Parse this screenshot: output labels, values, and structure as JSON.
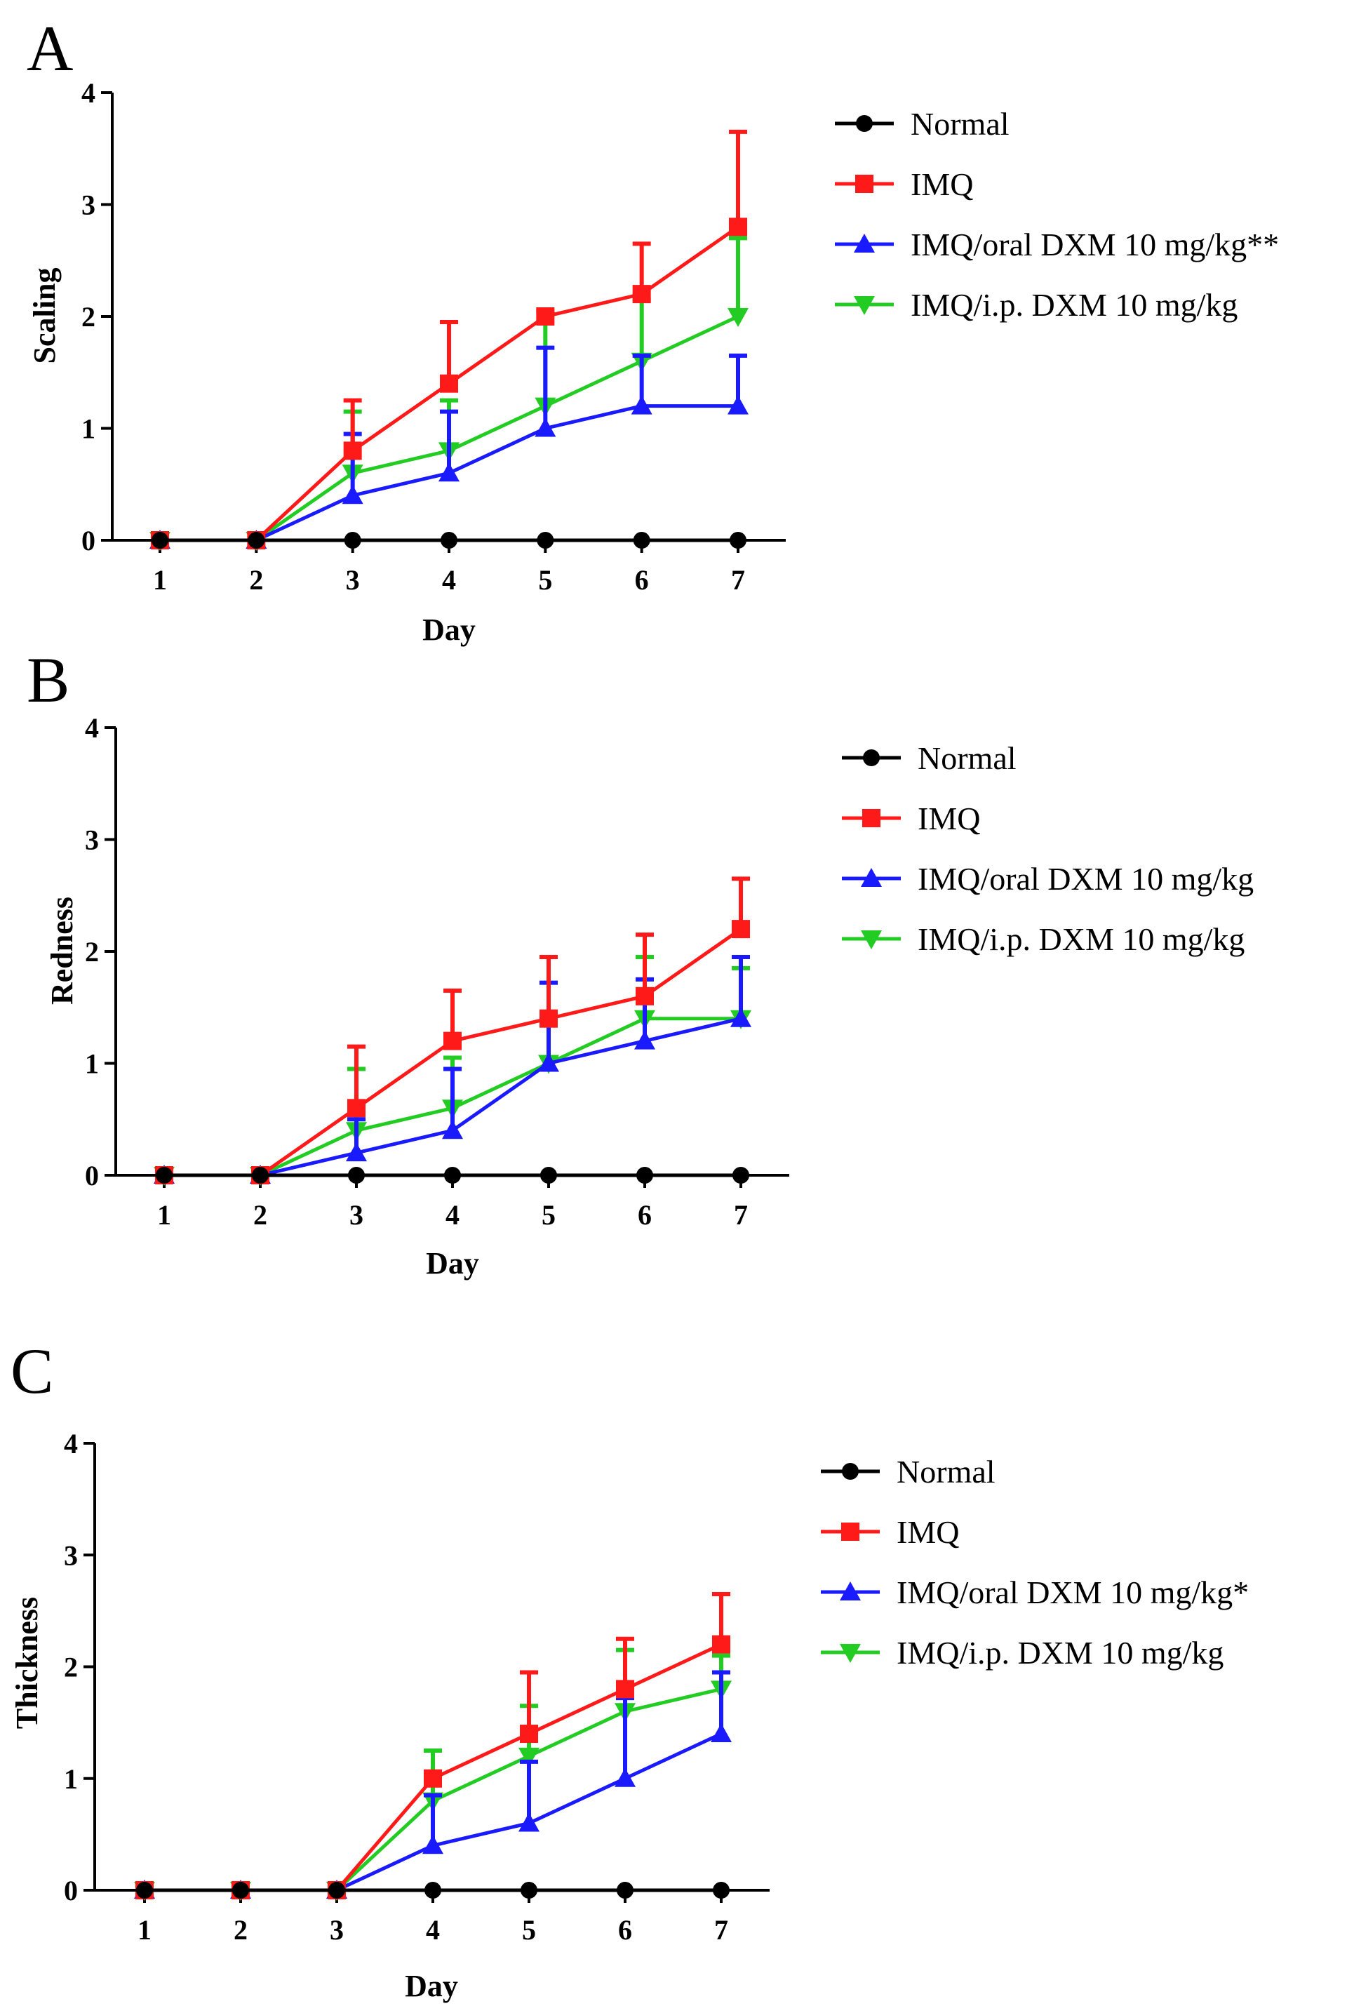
{
  "colors": {
    "Normal": "#000000",
    "IMQ": "#ff1a1a",
    "IMQ/oral DXM 10 mg/kg": "#1a1aff",
    "IMQ/i.p. DXM 10 mg/kg": "#22cc22"
  },
  "chart_data": [
    {
      "panel": "A",
      "type": "line",
      "xlabel": "Day",
      "ylabel": "Scaling",
      "categories": [
        1,
        2,
        3,
        4,
        5,
        6,
        7
      ],
      "yticks": [
        0,
        1,
        2,
        3,
        4
      ],
      "ylim": [
        0,
        4
      ],
      "series": [
        {
          "name": "Normal",
          "legend_label": "Normal",
          "marker": "circle",
          "values": [
            0,
            0,
            0,
            0,
            0,
            0,
            0
          ],
          "errors": [
            0,
            0,
            0,
            0,
            0,
            0,
            0
          ]
        },
        {
          "name": "IMQ",
          "legend_label": "IMQ",
          "marker": "square",
          "values": [
            0,
            0,
            0.8,
            1.4,
            2.0,
            2.2,
            2.8
          ],
          "errors": [
            0,
            0,
            0.45,
            0.55,
            0,
            0.45,
            0.85
          ]
        },
        {
          "name": "IMQ/oral DXM 10 mg/kg",
          "legend_label": "IMQ/oral DXM 10 mg/kg**",
          "marker": "triangle-up",
          "values": [
            0,
            0,
            0.4,
            0.6,
            1.0,
            1.2,
            1.2
          ],
          "errors": [
            0,
            0,
            0.55,
            0.55,
            0.72,
            0.45,
            0.45
          ]
        },
        {
          "name": "IMQ/i.p. DXM 10 mg/kg",
          "legend_label": "IMQ/i.p. DXM 10 mg/kg",
          "marker": "triangle-down",
          "values": [
            0,
            0,
            0.6,
            0.8,
            1.2,
            1.6,
            2.0
          ],
          "errors": [
            0,
            0,
            0.55,
            0.45,
            0.85,
            0.55,
            0.7
          ]
        }
      ]
    },
    {
      "panel": "B",
      "type": "line",
      "xlabel": "Day",
      "ylabel": "Redness",
      "categories": [
        1,
        2,
        3,
        4,
        5,
        6,
        7
      ],
      "yticks": [
        0,
        1,
        2,
        3,
        4
      ],
      "ylim": [
        0,
        4
      ],
      "series": [
        {
          "name": "Normal",
          "legend_label": "Normal",
          "marker": "circle",
          "values": [
            0,
            0,
            0,
            0,
            0,
            0,
            0
          ],
          "errors": [
            0,
            0,
            0,
            0,
            0,
            0,
            0
          ]
        },
        {
          "name": "IMQ",
          "legend_label": "IMQ",
          "marker": "square",
          "values": [
            0,
            0,
            0.6,
            1.2,
            1.4,
            1.6,
            2.2
          ],
          "errors": [
            0,
            0,
            0.55,
            0.45,
            0.55,
            0.55,
            0.45
          ]
        },
        {
          "name": "IMQ/oral DXM 10 mg/kg",
          "legend_label": "IMQ/oral DXM 10 mg/kg",
          "marker": "triangle-up",
          "values": [
            0,
            0,
            0.2,
            0.4,
            1.0,
            1.2,
            1.4
          ],
          "errors": [
            0,
            0,
            0.3,
            0.55,
            0.72,
            0.55,
            0.55
          ]
        },
        {
          "name": "IMQ/i.p. DXM 10 mg/kg",
          "legend_label": "IMQ/i.p. DXM 10 mg/kg",
          "marker": "triangle-down",
          "values": [
            0,
            0,
            0.4,
            0.6,
            1.0,
            1.4,
            1.4
          ],
          "errors": [
            0,
            0,
            0.55,
            0.45,
            0.45,
            0.55,
            0.45
          ]
        }
      ]
    },
    {
      "panel": "C",
      "type": "line",
      "xlabel": "Day",
      "ylabel": "Thickness",
      "categories": [
        1,
        2,
        3,
        4,
        5,
        6,
        7
      ],
      "yticks": [
        0,
        1,
        2,
        3,
        4
      ],
      "ylim": [
        0,
        4
      ],
      "series": [
        {
          "name": "Normal",
          "legend_label": "Normal",
          "marker": "circle",
          "values": [
            0,
            0,
            0,
            0,
            0,
            0,
            0
          ],
          "errors": [
            0,
            0,
            0,
            0,
            0,
            0,
            0
          ]
        },
        {
          "name": "IMQ",
          "legend_label": "IMQ",
          "marker": "square",
          "values": [
            0,
            0,
            0,
            1.0,
            1.4,
            1.8,
            2.2
          ],
          "errors": [
            0,
            0,
            0,
            0,
            0.55,
            0.45,
            0.45
          ]
        },
        {
          "name": "IMQ/oral DXM 10 mg/kg",
          "legend_label": "IMQ/oral DXM 10 mg/kg*",
          "marker": "triangle-up",
          "values": [
            0,
            0,
            0,
            0.4,
            0.6,
            1.0,
            1.4
          ],
          "errors": [
            0,
            0,
            0,
            0.45,
            0.55,
            0.72,
            0.55
          ]
        },
        {
          "name": "IMQ/i.p. DXM 10 mg/kg",
          "legend_label": "IMQ/i.p. DXM 10 mg/kg",
          "marker": "triangle-down",
          "values": [
            0,
            0,
            0,
            0.8,
            1.2,
            1.6,
            1.8
          ],
          "errors": [
            0,
            0,
            0,
            0.45,
            0.45,
            0.55,
            0.3
          ]
        }
      ]
    }
  ]
}
